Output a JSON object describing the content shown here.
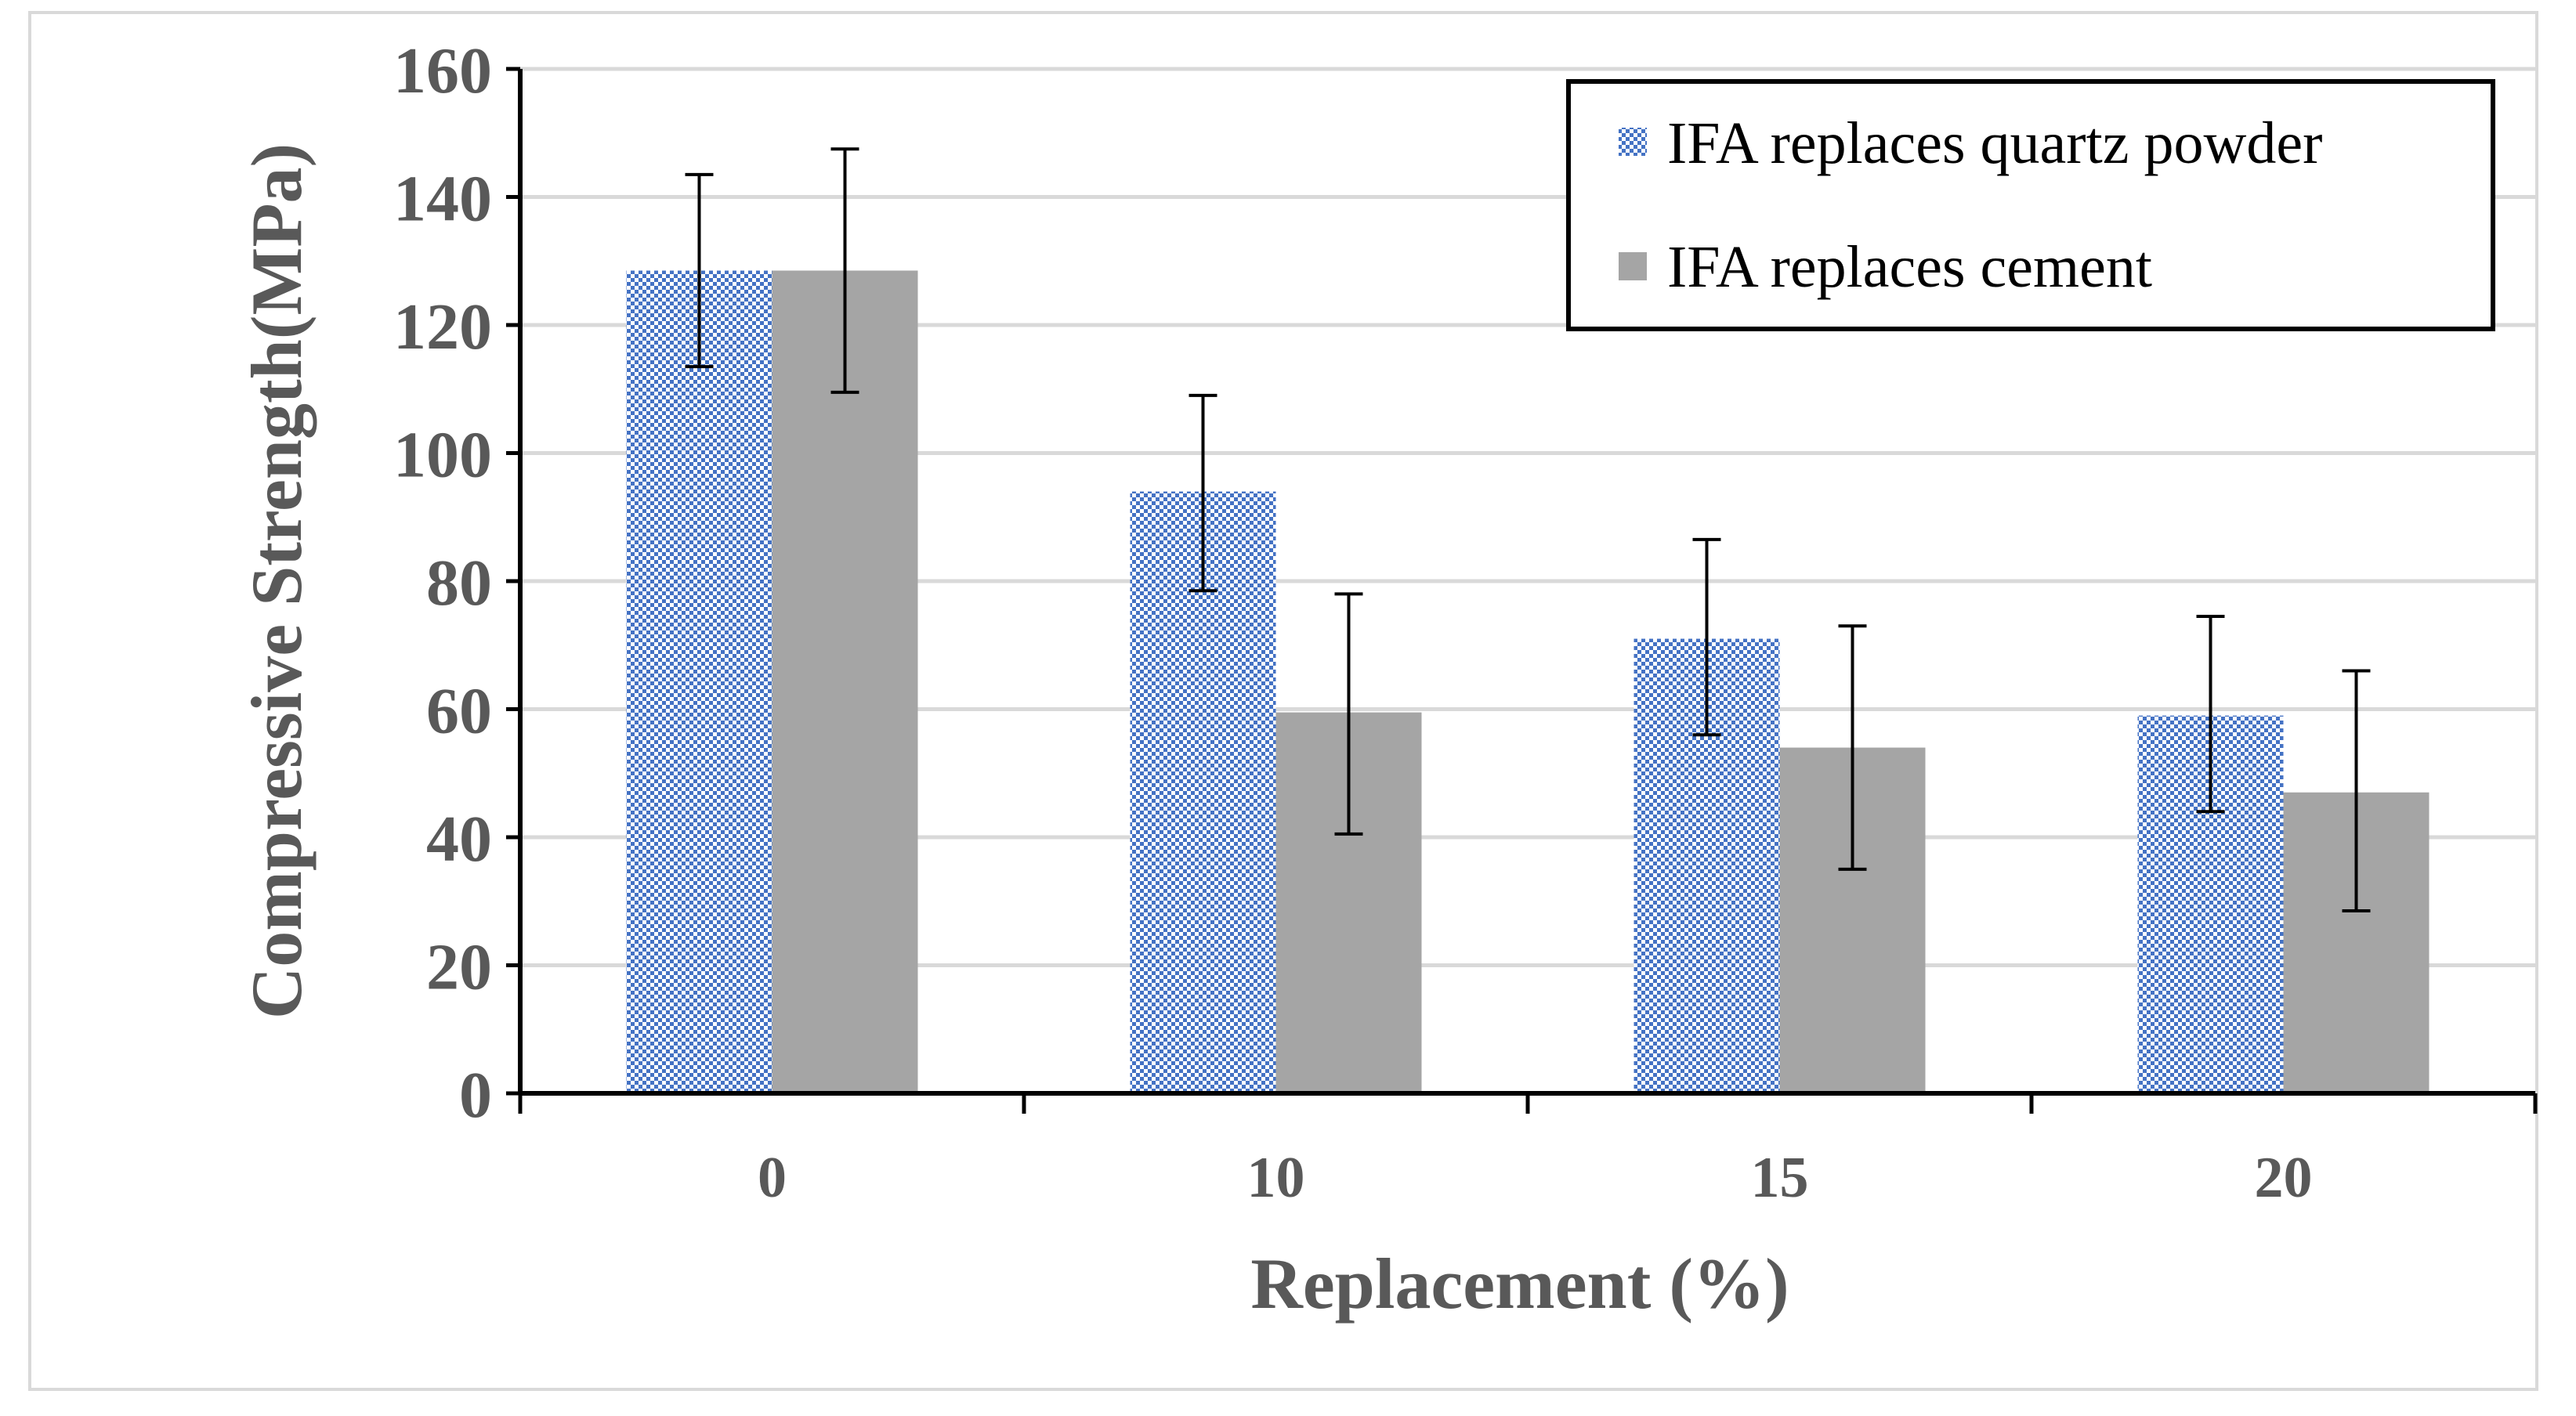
{
  "chart_data": {
    "type": "bar",
    "title": "",
    "xlabel": "Replacement (%)",
    "ylabel": "Compressive Strength(MPa)",
    "categories": [
      "0",
      "10",
      "15",
      "20"
    ],
    "ylim": [
      0,
      160
    ],
    "yticks": [
      0,
      20,
      40,
      60,
      80,
      100,
      120,
      140,
      160
    ],
    "grid": true,
    "legend_position": "top-right",
    "series": [
      {
        "name": "IFA replaces quartz powder",
        "pattern": "checker",
        "color": "#4472c4",
        "values": [
          128.5,
          94,
          71,
          59
        ],
        "error_low": [
          113.5,
          78.5,
          56,
          44
        ],
        "error_high": [
          143.5,
          109,
          86.5,
          74.5
        ]
      },
      {
        "name": "IFA replaces cement",
        "pattern": "solid",
        "color": "#a5a5a5",
        "values": [
          128.5,
          59.5,
          54,
          47
        ],
        "error_low": [
          109.5,
          40.5,
          35,
          28.5
        ],
        "error_high": [
          147.5,
          78,
          73,
          66
        ]
      }
    ]
  }
}
